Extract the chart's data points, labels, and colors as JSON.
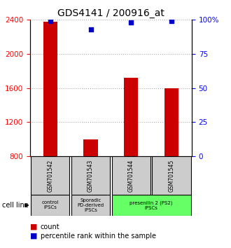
{
  "title": "GDS4141 / 200916_at",
  "samples": [
    "GSM701542",
    "GSM701543",
    "GSM701544",
    "GSM701545"
  ],
  "counts": [
    2380,
    1000,
    1720,
    1600
  ],
  "percentiles": [
    99,
    93,
    98,
    99
  ],
  "ylim_left": [
    800,
    2400
  ],
  "ylim_right": [
    0,
    100
  ],
  "yticks_left": [
    800,
    1200,
    1600,
    2000,
    2400
  ],
  "yticks_right": [
    0,
    25,
    50,
    75,
    100
  ],
  "bar_color": "#cc0000",
  "dot_color": "#0000cc",
  "bar_bottom": 800,
  "groups": [
    {
      "label": "control\nIPSCs",
      "start": 0,
      "end": 1,
      "color": "#cccccc"
    },
    {
      "label": "Sporadic\nPD-derived\niPSCs",
      "start": 1,
      "end": 2,
      "color": "#cccccc"
    },
    {
      "label": "presenilin 2 (PS2)\niPSCs",
      "start": 2,
      "end": 4,
      "color": "#66ff66"
    }
  ],
  "legend_count_label": "count",
  "legend_pct_label": "percentile rank within the sample",
  "cell_line_label": "cell line",
  "grid_color": "#aaaaaa",
  "title_fontsize": 10,
  "tick_fontsize": 7.5,
  "sample_box_color": "#cccccc"
}
